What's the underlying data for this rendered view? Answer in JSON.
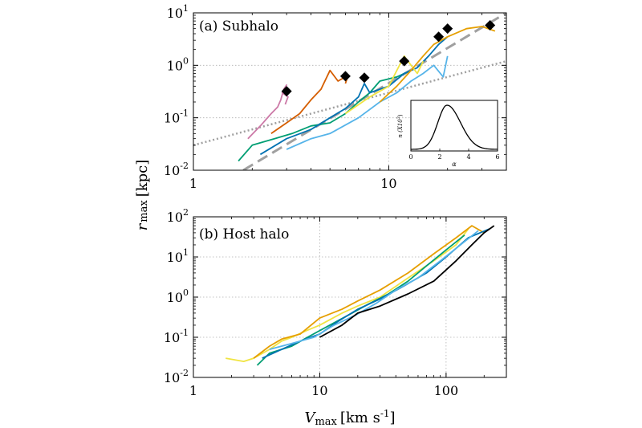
{
  "figure": {
    "ylabel_main": "r",
    "ylabel_sub": "max",
    "ylabel_unit": "[kpc]",
    "xlabel_main": "V",
    "xlabel_sub": "max",
    "xlabel_unit": "[km s",
    "xlabel_unit_sup": "-1",
    "xlabel_unit_end": "]"
  },
  "chart_data": [
    {
      "type": "line",
      "title": "(a) Subhalo",
      "xscale": "log",
      "yscale": "log",
      "xlim": [
        1,
        40
      ],
      "ylim": [
        0.01,
        10
      ],
      "xticks": [
        {
          "v": 1,
          "label": "1"
        },
        {
          "v": 10,
          "label": "10"
        }
      ],
      "yticks": [
        {
          "v": 0.01,
          "base": "10",
          "exp": "-2"
        },
        {
          "v": 0.1,
          "base": "10",
          "exp": "-1"
        },
        {
          "v": 1,
          "base": "10",
          "exp": "0"
        },
        {
          "v": 10,
          "base": "10",
          "exp": "1"
        }
      ],
      "grid": true,
      "reference_lines": [
        {
          "style": "dashed",
          "color": "#a0a0a0",
          "points": [
            [
              1.8,
              0.01
            ],
            [
              40,
              10
            ]
          ]
        },
        {
          "style": "dotted",
          "color": "#a0a0a0",
          "points": [
            [
              1,
              0.03
            ],
            [
              40,
              1.2
            ]
          ]
        }
      ],
      "markers": [
        {
          "x": 3.0,
          "y": 0.32
        },
        {
          "x": 6.0,
          "y": 0.62
        },
        {
          "x": 7.5,
          "y": 0.58
        },
        {
          "x": 12.0,
          "y": 1.2
        },
        {
          "x": 18.0,
          "y": 3.5
        },
        {
          "x": 20.0,
          "y": 5.0
        },
        {
          "x": 33.0,
          "y": 5.8
        }
      ],
      "series": [
        {
          "color": "#cc79a7",
          "points": [
            [
              1.9,
              0.04
            ],
            [
              2.2,
              0.07
            ],
            [
              2.5,
              0.12
            ],
            [
              2.7,
              0.16
            ],
            [
              2.8,
              0.22
            ],
            [
              2.9,
              0.35
            ],
            [
              3.0,
              0.42
            ],
            [
              2.85,
              0.3
            ],
            [
              3.05,
              0.25
            ],
            [
              2.95,
              0.18
            ]
          ]
        },
        {
          "color": "#d55e00",
          "points": [
            [
              2.5,
              0.05
            ],
            [
              3.0,
              0.08
            ],
            [
              3.5,
              0.12
            ],
            [
              4.0,
              0.22
            ],
            [
              4.5,
              0.35
            ],
            [
              5.0,
              0.8
            ],
            [
              5.5,
              0.5
            ],
            [
              6.2,
              0.65
            ],
            [
              6.0,
              0.45
            ]
          ]
        },
        {
          "color": "#009e73",
          "points": [
            [
              1.7,
              0.015
            ],
            [
              2.0,
              0.03
            ],
            [
              2.6,
              0.04
            ],
            [
              3.2,
              0.05
            ],
            [
              4.0,
              0.07
            ],
            [
              5.0,
              0.08
            ],
            [
              6.0,
              0.12
            ],
            [
              7.0,
              0.2
            ],
            [
              8.0,
              0.3
            ],
            [
              9.0,
              0.5
            ],
            [
              11.0,
              0.6
            ],
            [
              13.0,
              0.8
            ]
          ]
        },
        {
          "color": "#0072b2",
          "points": [
            [
              2.2,
              0.02
            ],
            [
              3.0,
              0.04
            ],
            [
              4.0,
              0.06
            ],
            [
              5.0,
              0.1
            ],
            [
              6.0,
              0.15
            ],
            [
              7.0,
              0.25
            ],
            [
              7.5,
              0.45
            ],
            [
              8.0,
              0.3
            ],
            [
              10.0,
              0.4
            ],
            [
              12.0,
              0.7
            ],
            [
              14.0,
              0.9
            ],
            [
              16.0,
              1.5
            ],
            [
              18.0,
              2.5
            ],
            [
              20.0,
              3.5
            ]
          ]
        },
        {
          "color": "#56b4e9",
          "points": [
            [
              3.0,
              0.025
            ],
            [
              4.0,
              0.04
            ],
            [
              5.0,
              0.05
            ],
            [
              7.0,
              0.1
            ],
            [
              9.0,
              0.2
            ],
            [
              11.0,
              0.3
            ],
            [
              13.0,
              0.5
            ],
            [
              15.0,
              0.7
            ],
            [
              17.0,
              1.0
            ],
            [
              19.0,
              0.6
            ],
            [
              20.0,
              1.5
            ]
          ]
        },
        {
          "color": "#f0e442",
          "points": [
            [
              6.0,
              0.12
            ],
            [
              8.0,
              0.25
            ],
            [
              10.0,
              0.4
            ],
            [
              11.0,
              0.8
            ],
            [
              12.0,
              1.5
            ],
            [
              13.0,
              1.0
            ],
            [
              14.0,
              0.7
            ],
            [
              15.0,
              1.2
            ]
          ]
        },
        {
          "color": "#e69f00",
          "points": [
            [
              9.0,
              0.2
            ],
            [
              11.0,
              0.4
            ],
            [
              13.0,
              0.8
            ],
            [
              15.0,
              1.5
            ],
            [
              17.0,
              2.5
            ],
            [
              20.0,
              3.5
            ],
            [
              25.0,
              5.0
            ],
            [
              30.0,
              5.5
            ],
            [
              35.0,
              4.5
            ]
          ]
        }
      ],
      "inset": {
        "type": "line",
        "xlabel": "α",
        "ylabel_parts": [
          "n (X10",
          "3",
          "3",
          ")"
        ],
        "xlim": [
          0,
          6
        ],
        "xticks": [
          {
            "v": 0,
            "label": "0"
          },
          {
            "v": 2,
            "label": "2"
          },
          {
            "v": 4,
            "label": "4"
          },
          {
            "v": 6,
            "label": "6"
          }
        ],
        "curve": {
          "x0": 2.5,
          "sigma": 0.75
        }
      }
    },
    {
      "type": "line",
      "title": "(b) Host halo",
      "xscale": "log",
      "yscale": "log",
      "xlim": [
        1,
        300
      ],
      "ylim": [
        0.01,
        100
      ],
      "xticks": [
        {
          "v": 1,
          "label": "1"
        },
        {
          "v": 10,
          "label": "10"
        },
        {
          "v": 100,
          "label": "100"
        }
      ],
      "yticks": [
        {
          "v": 0.01,
          "base": "10",
          "exp": "-2"
        },
        {
          "v": 0.1,
          "base": "10",
          "exp": "-1"
        },
        {
          "v": 1,
          "base": "10",
          "exp": "0"
        },
        {
          "v": 10,
          "base": "10",
          "exp": "1"
        },
        {
          "v": 100,
          "base": "10",
          "exp": "2"
        }
      ],
      "grid": true,
      "series": [
        {
          "color": "#f0e442",
          "points": [
            [
              1.8,
              0.03
            ],
            [
              2.5,
              0.025
            ],
            [
              3.0,
              0.03
            ],
            [
              4.0,
              0.05
            ],
            [
              5.0,
              0.08
            ],
            [
              6.0,
              0.1
            ],
            [
              8.0,
              0.15
            ],
            [
              10.0,
              0.2
            ],
            [
              15.0,
              0.4
            ],
            [
              20.0,
              0.6
            ],
            [
              30.0,
              1.0
            ],
            [
              50.0,
              3.0
            ],
            [
              80.0,
              8.0
            ],
            [
              120.0,
              20.0
            ],
            [
              150.0,
              50.0
            ]
          ]
        },
        {
          "color": "#e69f00",
          "points": [
            [
              3.0,
              0.03
            ],
            [
              4.0,
              0.06
            ],
            [
              5.0,
              0.09
            ],
            [
              7.0,
              0.12
            ],
            [
              10.0,
              0.3
            ],
            [
              15.0,
              0.5
            ],
            [
              20.0,
              0.8
            ],
            [
              30.0,
              1.5
            ],
            [
              50.0,
              4.0
            ],
            [
              80.0,
              12.0
            ],
            [
              120.0,
              30.0
            ],
            [
              160.0,
              60.0
            ],
            [
              200.0,
              40.0
            ]
          ]
        },
        {
          "color": "#009e73",
          "points": [
            [
              3.2,
              0.02
            ],
            [
              4.0,
              0.04
            ],
            [
              6.0,
              0.06
            ],
            [
              8.0,
              0.1
            ],
            [
              12.0,
              0.2
            ],
            [
              18.0,
              0.4
            ],
            [
              25.0,
              0.7
            ],
            [
              35.0,
              1.2
            ],
            [
              50.0,
              2.5
            ],
            [
              70.0,
              6.0
            ],
            [
              100.0,
              15.0
            ],
            [
              140.0,
              35.0
            ]
          ]
        },
        {
          "color": "#0072b2",
          "points": [
            [
              3.5,
              0.03
            ],
            [
              5.0,
              0.05
            ],
            [
              7.0,
              0.08
            ],
            [
              10.0,
              0.12
            ],
            [
              14.0,
              0.25
            ],
            [
              20.0,
              0.5
            ],
            [
              30.0,
              0.9
            ],
            [
              45.0,
              1.8
            ],
            [
              70.0,
              4.0
            ],
            [
              100.0,
              10.0
            ],
            [
              150.0,
              30.0
            ],
            [
              220.0,
              50.0
            ]
          ]
        },
        {
          "color": "#56b4e9",
          "points": [
            [
              4.0,
              0.05
            ],
            [
              6.0,
              0.07
            ],
            [
              9.0,
              0.1
            ],
            [
              13.0,
              0.2
            ],
            [
              19.0,
              0.35
            ],
            [
              28.0,
              0.7
            ],
            [
              40.0,
              1.5
            ],
            [
              60.0,
              3.0
            ],
            [
              90.0,
              8.0
            ],
            [
              130.0,
              20.0
            ],
            [
              180.0,
              45.0
            ]
          ]
        },
        {
          "color": "#000000",
          "points": [
            [
              10.0,
              0.1
            ],
            [
              15.0,
              0.2
            ],
            [
              20.0,
              0.4
            ],
            [
              30.0,
              0.6
            ],
            [
              50.0,
              1.2
            ],
            [
              80.0,
              2.5
            ],
            [
              120.0,
              8.0
            ],
            [
              160.0,
              20.0
            ],
            [
              200.0,
              40.0
            ],
            [
              240.0,
              60.0
            ]
          ]
        }
      ]
    }
  ]
}
